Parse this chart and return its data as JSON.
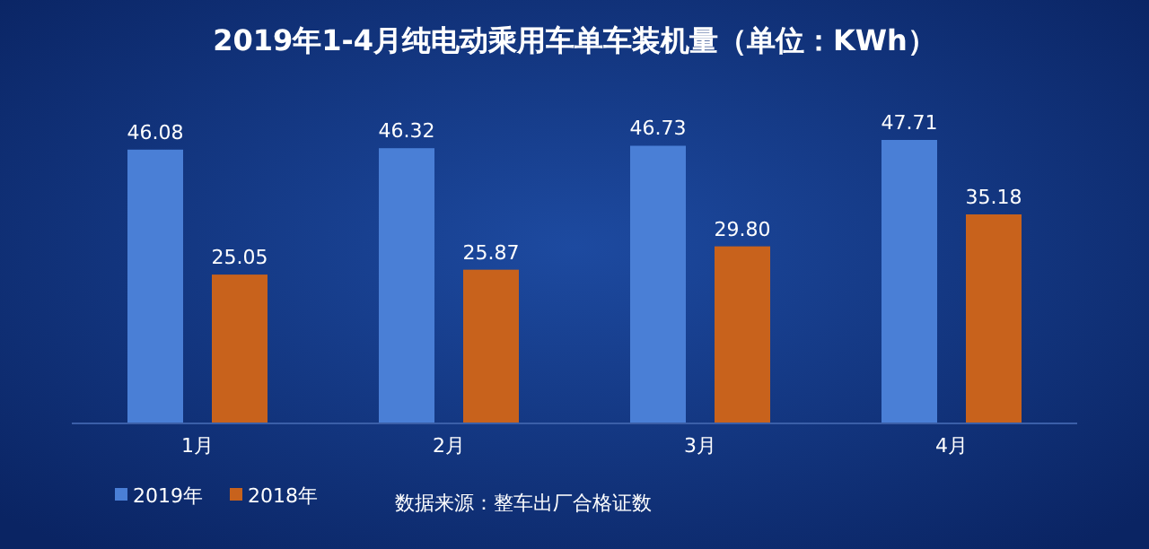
{
  "chart_data": {
    "type": "bar",
    "title": "2019年1-4月纯电动乘用车单车装机量（单位：KWh）",
    "categories": [
      "1月",
      "2月",
      "3月",
      "4月"
    ],
    "series": [
      {
        "name": "2019年",
        "color": "#4a7fd6",
        "values": [
          46.08,
          46.32,
          46.73,
          47.71
        ],
        "value_labels": [
          "46.08",
          "46.32",
          "46.73",
          "47.71"
        ]
      },
      {
        "name": "2018年",
        "color": "#c8621c",
        "values": [
          25.05,
          25.87,
          29.8,
          35.18
        ],
        "value_labels": [
          "25.05",
          "25.87",
          "29.80",
          "35.18"
        ]
      }
    ],
    "legend": "bottom left",
    "annotations": [
      "数据来源：整车出厂合格证数"
    ]
  }
}
